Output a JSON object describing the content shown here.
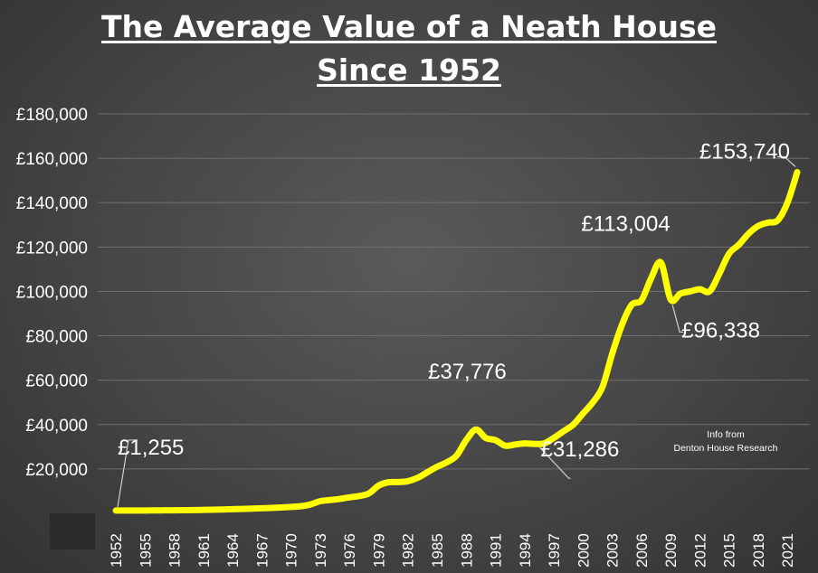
{
  "title_line1": "The Average Value of a Neath House",
  "title_line2": "Since 1952",
  "chart_data": {
    "type": "line",
    "title": "The Average Value of a Neath House Since 1952",
    "y_ticks": [
      "£20,000",
      "£40,000",
      "£60,000",
      "£80,000",
      "£100,000",
      "£120,000",
      "£140,000",
      "£160,000",
      "£180,000"
    ],
    "x_ticks": [
      "1952",
      "1955",
      "1958",
      "1961",
      "1964",
      "1967",
      "1970",
      "1973",
      "1976",
      "1979",
      "1982",
      "1985",
      "1988",
      "1991",
      "1994",
      "1997",
      "2000",
      "2003",
      "2006",
      "2009",
      "2012",
      "2015",
      "2018",
      "2021"
    ],
    "ylim": [
      0,
      180000
    ],
    "xlim": [
      1952,
      2022
    ],
    "grid": true,
    "line_color": "#ffff00",
    "series": [
      {
        "x": [
          1952,
          1953,
          1954,
          1955,
          1956,
          1957,
          1958,
          1959,
          1960,
          1961,
          1962,
          1963,
          1964,
          1965,
          1966,
          1967,
          1968,
          1969,
          1970,
          1971,
          1972,
          1973,
          1974,
          1975,
          1976,
          1977,
          1978,
          1979,
          1980,
          1981,
          1982,
          1983,
          1984,
          1985,
          1986,
          1987,
          1988,
          1989,
          1990,
          1991,
          1992,
          1993,
          1994,
          1995,
          1996,
          1997,
          1998,
          1999,
          2000,
          2001,
          2002,
          2003,
          2004,
          2005,
          2006,
          2007,
          2008,
          2009,
          2010,
          2011,
          2012,
          2013,
          2014,
          2015,
          2016,
          2017,
          2018,
          2019,
          2020,
          2021,
          2022
        ],
        "values": [
          1255,
          1260,
          1270,
          1290,
          1320,
          1350,
          1380,
          1420,
          1480,
          1560,
          1650,
          1750,
          1880,
          2000,
          2150,
          2300,
          2450,
          2650,
          2900,
          3200,
          4000,
          5500,
          6000,
          6500,
          7200,
          7800,
          9000,
          12500,
          14000,
          14100,
          14500,
          16000,
          18500,
          21000,
          23000,
          26000,
          33000,
          37776,
          34000,
          33000,
          30500,
          31000,
          31500,
          31286,
          31500,
          34000,
          37000,
          40000,
          45000,
          50000,
          57000,
          72000,
          85000,
          94000,
          96000,
          106000,
          113004,
          96338,
          99000,
          100000,
          101000,
          100000,
          108000,
          117000,
          121000,
          126000,
          129500,
          131000,
          132000,
          140000,
          153740
        ]
      }
    ],
    "labels": [
      {
        "text": "£1,255",
        "x": 1952,
        "y": 1255
      },
      {
        "text": "£37,776",
        "x": 1989,
        "y": 37776
      },
      {
        "text": "£31,286",
        "x": 1995,
        "y": 31286
      },
      {
        "text": "£113,004",
        "x": 2008,
        "y": 113004
      },
      {
        "text": "£96,338",
        "x": 2009,
        "y": 96338
      },
      {
        "text": "£153,740",
        "x": 2022,
        "y": 153740
      }
    ],
    "note_line1": "Info from",
    "note_line2": "Denton House Research"
  }
}
